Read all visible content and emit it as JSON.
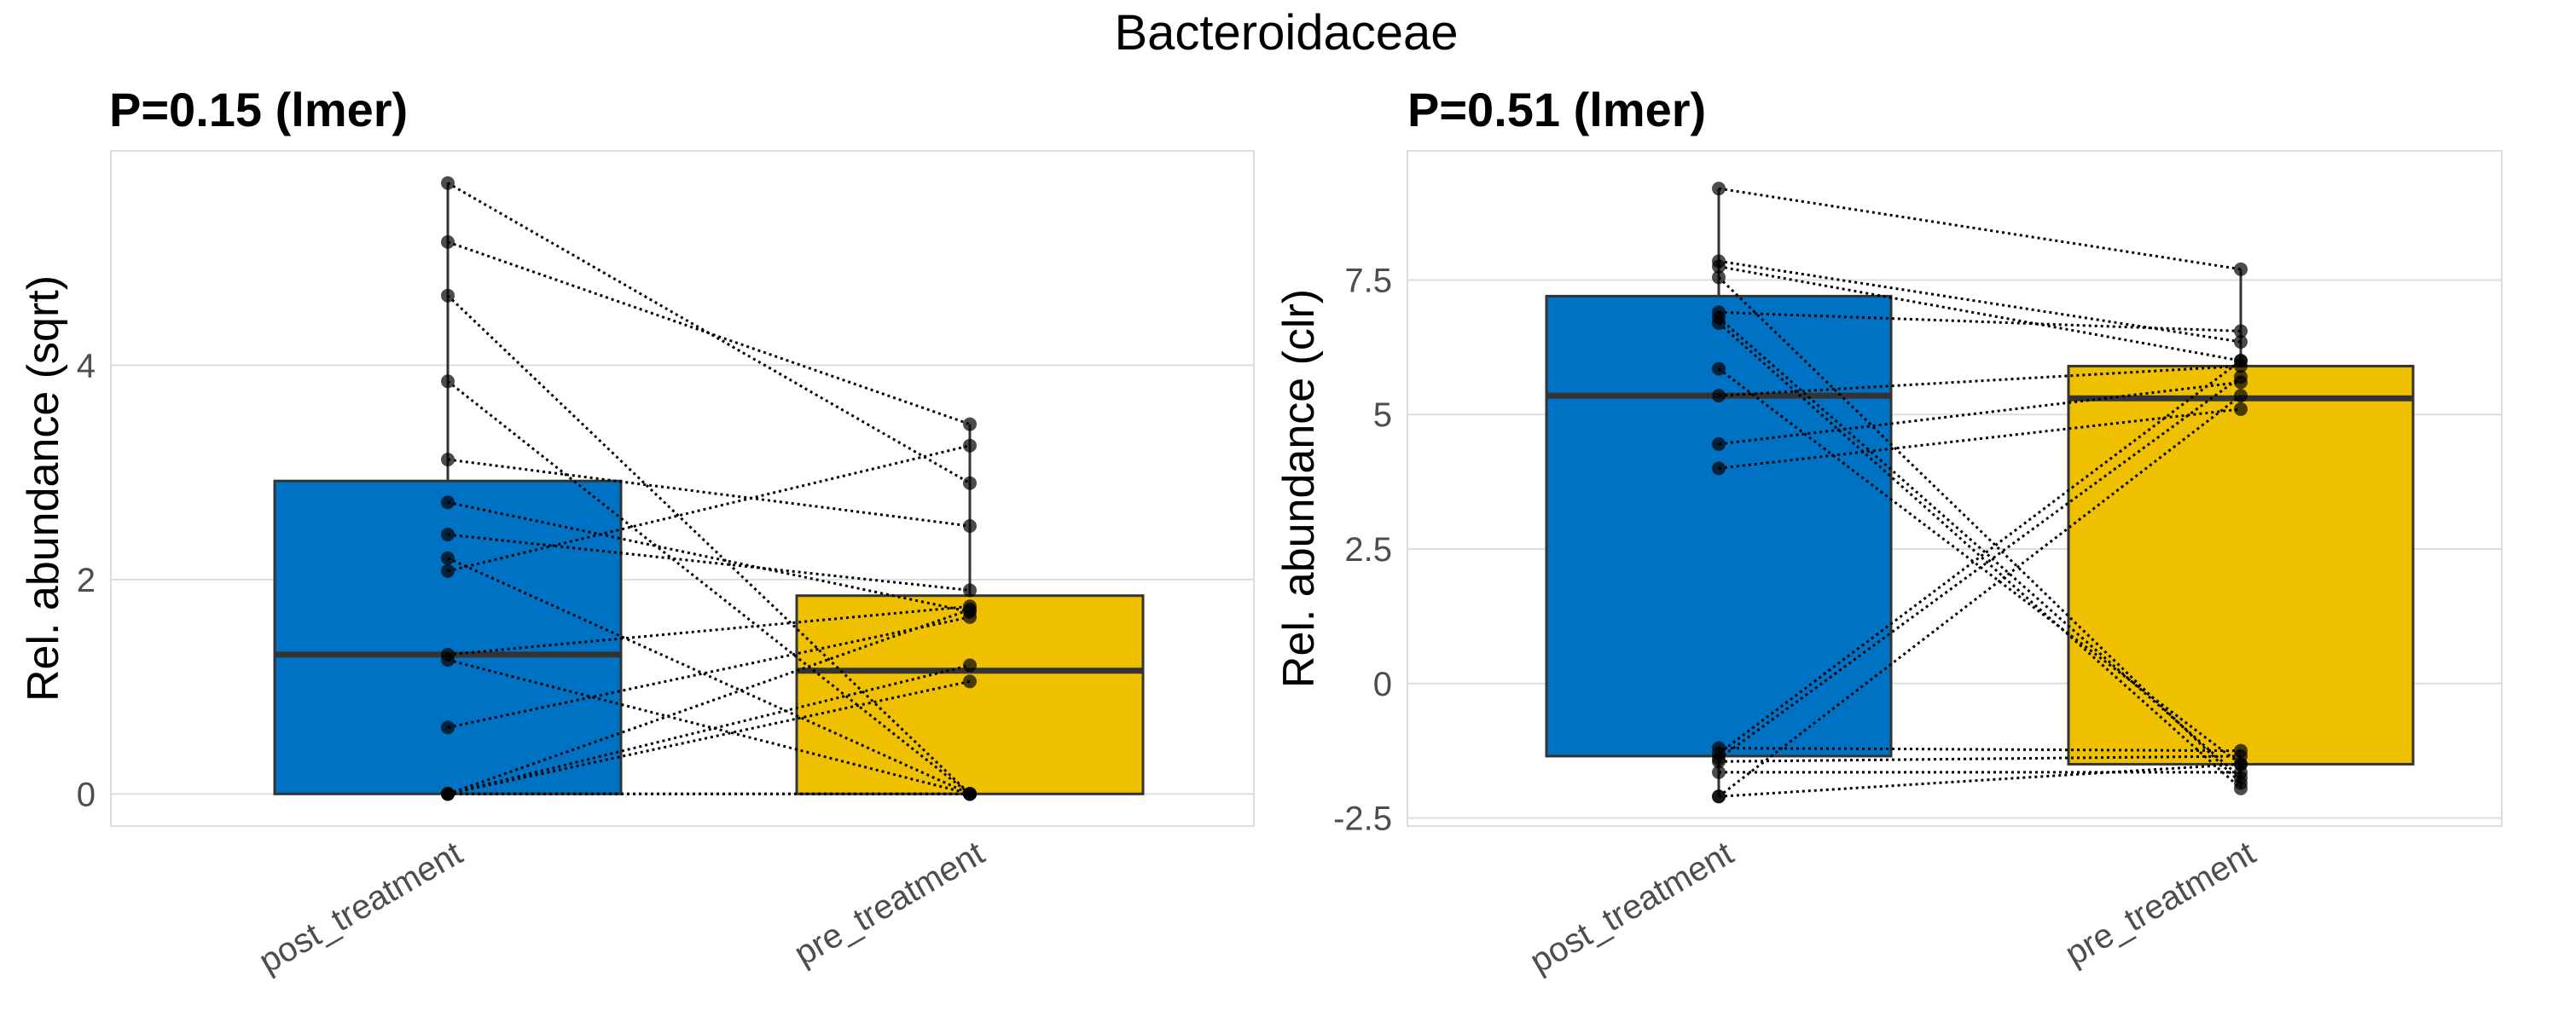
{
  "title": "Bacteroidaceae",
  "colors": {
    "post_treatment": "#0072C3",
    "pre_treatment": "#EFC000",
    "grid": "#dddddd",
    "points": "#000000"
  },
  "chart_data": [
    {
      "type": "box",
      "title": "P=0.15 (lmer)",
      "ylabel": "Rel. abundance (sqrt)",
      "xlabel": "",
      "categories": [
        "post_treatment",
        "pre_treatment"
      ],
      "ylim": [
        -0.3,
        6.0
      ],
      "yticks": [
        0,
        2,
        4
      ],
      "ytick_labels": [
        "0",
        "2",
        "4"
      ],
      "boxes": [
        {
          "category": "post_treatment",
          "whisker_low": 0,
          "q1": 0,
          "median": 1.3,
          "q3": 2.92,
          "whisker_high": 5.7
        },
        {
          "category": "pre_treatment",
          "whisker_low": 0,
          "q1": 0,
          "median": 1.15,
          "q3": 1.85,
          "whisker_high": 3.45
        }
      ],
      "pairs": [
        [
          5.7,
          2.9
        ],
        [
          5.15,
          3.45
        ],
        [
          4.65,
          0
        ],
        [
          3.85,
          0
        ],
        [
          3.12,
          2.5
        ],
        [
          2.72,
          1.7
        ],
        [
          2.42,
          1.9
        ],
        [
          2.2,
          0
        ],
        [
          2.08,
          3.25
        ],
        [
          1.3,
          1.75
        ],
        [
          1.25,
          0
        ],
        [
          0.62,
          1.65
        ],
        [
          0,
          1.72
        ],
        [
          0,
          1.2
        ],
        [
          0,
          1.05
        ],
        [
          0,
          0
        ],
        [
          0,
          0
        ]
      ]
    },
    {
      "type": "box",
      "title": "P=0.51 (lmer)",
      "ylabel": "Rel. abundance (clr)",
      "xlabel": "",
      "categories": [
        "post_treatment",
        "pre_treatment"
      ],
      "ylim": [
        -2.65,
        9.9
      ],
      "yticks": [
        -2.5,
        0,
        2.5,
        5,
        7.5
      ],
      "ytick_labels": [
        "-2.5",
        "0",
        "2.5",
        "5",
        "7.5"
      ],
      "boxes": [
        {
          "category": "post_treatment",
          "whisker_low": -2.1,
          "q1": -1.35,
          "median": 5.35,
          "q3": 7.2,
          "whisker_high": 9.2
        },
        {
          "category": "pre_treatment",
          "whisker_low": -1.95,
          "q1": -1.5,
          "median": 5.3,
          "q3": 5.9,
          "whisker_high": 7.7
        }
      ],
      "pairs": [
        [
          9.2,
          7.7
        ],
        [
          7.85,
          6.35
        ],
        [
          7.75,
          6.0
        ],
        [
          7.55,
          -1.85
        ],
        [
          6.9,
          6.55
        ],
        [
          6.8,
          -1.75
        ],
        [
          6.7,
          -1.95
        ],
        [
          5.85,
          -1.5
        ],
        [
          5.35,
          5.9
        ],
        [
          4.45,
          5.6
        ],
        [
          4.0,
          5.1
        ],
        [
          -1.2,
          -1.25
        ],
        [
          -1.3,
          6.0
        ],
        [
          -1.4,
          5.7
        ],
        [
          -1.45,
          -1.35
        ],
        [
          -1.65,
          -1.65
        ],
        [
          -2.1,
          5.35
        ],
        [
          -2.1,
          -1.5
        ]
      ]
    }
  ]
}
